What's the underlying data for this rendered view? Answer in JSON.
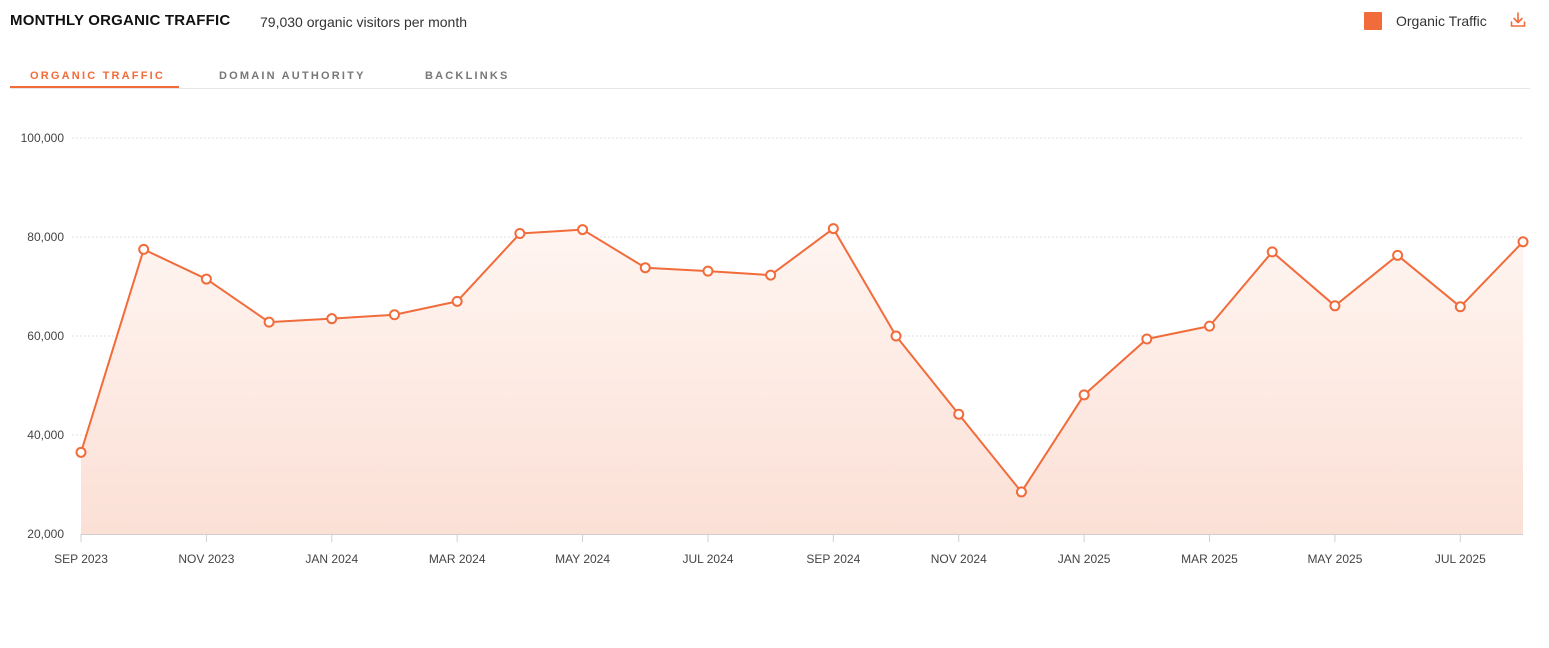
{
  "header": {
    "title": "MONTHLY ORGANIC TRAFFIC",
    "subtitle": "79,030 organic visitors per month",
    "download_icon": "download-icon"
  },
  "tabs": [
    {
      "label": "ORGANIC TRAFFIC",
      "active": true
    },
    {
      "label": "DOMAIN AUTHORITY",
      "active": false
    },
    {
      "label": "BACKLINKS",
      "active": false
    }
  ],
  "colors": {
    "accent": "#f26b3a",
    "grid": "#e2e2e2",
    "fill_top": "#fff5f1",
    "fill_bottom": "#fbe0d6"
  },
  "chart_data": {
    "type": "area",
    "title": "",
    "xlabel": "",
    "ylabel": "",
    "ylim": [
      20000,
      100000
    ],
    "yticks": [
      "20,000",
      "40,000",
      "60,000",
      "80,000",
      "100,000"
    ],
    "x": [
      "2023-09",
      "2023-10",
      "2023-11",
      "2023-12",
      "2024-01",
      "2024-02",
      "2024-03",
      "2024-04",
      "2024-05",
      "2024-06",
      "2024-07",
      "2024-08",
      "2024-09",
      "2024-10",
      "2024-11",
      "2024-12",
      "2025-01",
      "2025-02",
      "2025-03",
      "2025-04",
      "2025-05",
      "2025-06",
      "2025-07",
      "2025-08"
    ],
    "xtick_labels": [
      {
        "x": "2023-09",
        "label": "SEP 2023"
      },
      {
        "x": "2023-11",
        "label": "NOV 2023"
      },
      {
        "x": "2024-01",
        "label": "JAN 2024"
      },
      {
        "x": "2024-03",
        "label": "MAR 2024"
      },
      {
        "x": "2024-05",
        "label": "MAY 2024"
      },
      {
        "x": "2024-07",
        "label": "JUL 2024"
      },
      {
        "x": "2024-09",
        "label": "SEP 2024"
      },
      {
        "x": "2024-11",
        "label": "NOV 2024"
      },
      {
        "x": "2025-01",
        "label": "JAN 2025"
      },
      {
        "x": "2025-03",
        "label": "MAR 2025"
      },
      {
        "x": "2025-05",
        "label": "MAY 2025"
      },
      {
        "x": "2025-07",
        "label": "JUL 2025"
      }
    ],
    "series": [
      {
        "name": "Organic Traffic",
        "values": [
          36500,
          77500,
          71500,
          62800,
          63500,
          64300,
          67000,
          80700,
          81500,
          73800,
          73100,
          72300,
          81700,
          60000,
          44200,
          28500,
          48100,
          59400,
          62000,
          77000,
          66100,
          76300,
          65900,
          79030
        ]
      }
    ],
    "grid": true,
    "legend": "top-right"
  }
}
